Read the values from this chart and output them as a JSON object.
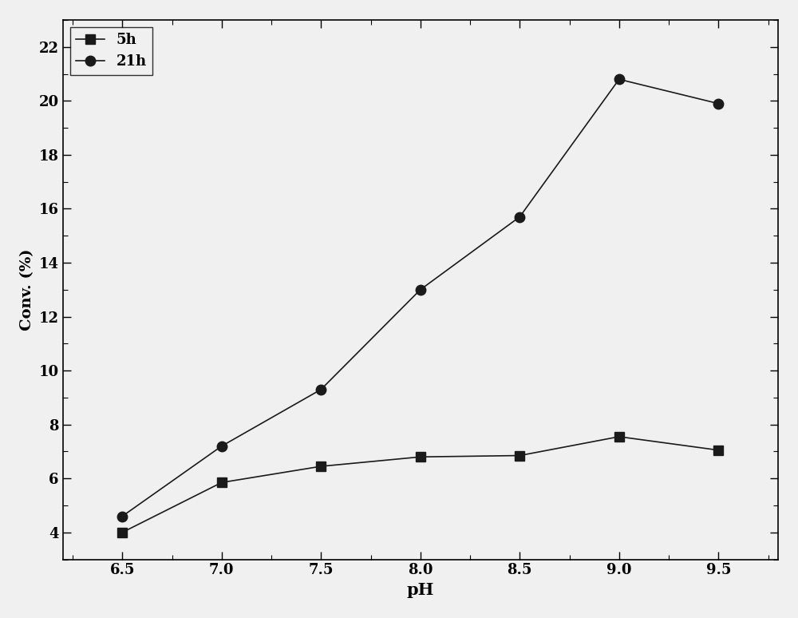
{
  "ph_values": [
    6.5,
    7.0,
    7.5,
    8.0,
    8.5,
    9.0,
    9.5
  ],
  "series_5h": {
    "label": "5h",
    "y": [
      4.0,
      5.85,
      6.45,
      6.8,
      6.85,
      7.55,
      7.05
    ],
    "color": "#1a1a1a",
    "marker": "s",
    "markersize": 8,
    "linewidth": 1.2
  },
  "series_21h": {
    "label": "21h",
    "y": [
      4.6,
      7.2,
      9.3,
      13.0,
      15.7,
      20.8,
      19.9
    ],
    "color": "#1a1a1a",
    "marker": "o",
    "markersize": 9,
    "linewidth": 1.2
  },
  "xlabel": "pH",
  "ylabel": "Conv. (%)",
  "xlim": [
    6.2,
    9.8
  ],
  "ylim": [
    3.0,
    23.0
  ],
  "yticks": [
    4,
    6,
    8,
    10,
    12,
    14,
    16,
    18,
    20,
    22
  ],
  "xticks": [
    6.5,
    7.0,
    7.5,
    8.0,
    8.5,
    9.0,
    9.5
  ],
  "background_color": "#f0f0f0",
  "plot_bg_color": "#f0f0f0",
  "legend_loc": "upper left",
  "xlabel_fontsize": 15,
  "ylabel_fontsize": 14,
  "tick_fontsize": 13,
  "legend_fontsize": 13,
  "title": ""
}
